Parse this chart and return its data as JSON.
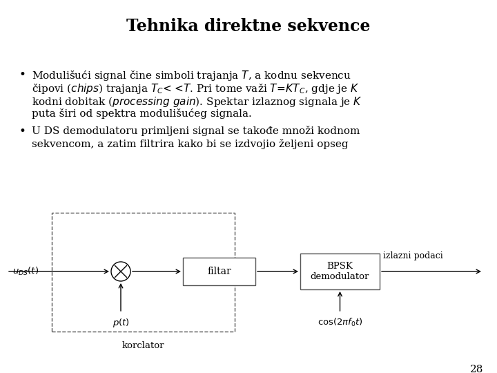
{
  "title": "Tehnika direktne sekvence",
  "title_fontsize": 17,
  "background_color": "#ffffff",
  "text_color": "#000000",
  "bullet_fontsize": 11,
  "bullet1": [
    "Modulišući signal čine simboli trajanja $T$, a kodnu sekvencu",
    "čipovi ($\\mathit{chips}$) trajanja $T_C\\!<\\!<\\!T$. Pri tome važi $T\\!=\\!KT_C$, gdje je $K$",
    "kodni dobitak ($\\mathit{processing\\ gain}$). Spektar izlaznog signala je $K$",
    "puta širi od spektra modulišućeg signala."
  ],
  "bullet2": [
    "U DS demodulatoru primljeni signal se takođe množi kodnom",
    "sekvencom, a zatim filtrira kako bi se izdvojio željeni opseg"
  ],
  "page_number": "28",
  "diag": {
    "signal_label": "$u_{DS}(t)$",
    "pt_label": "$p(t)$",
    "filtar_label": "filtar",
    "bpsk_label": "BPSK\ndemodulator",
    "izlazni_label": "izlazni podaci",
    "cos_label": "$\\cos(2\\pi f_0 t)$",
    "korclator_label": "korclator"
  }
}
